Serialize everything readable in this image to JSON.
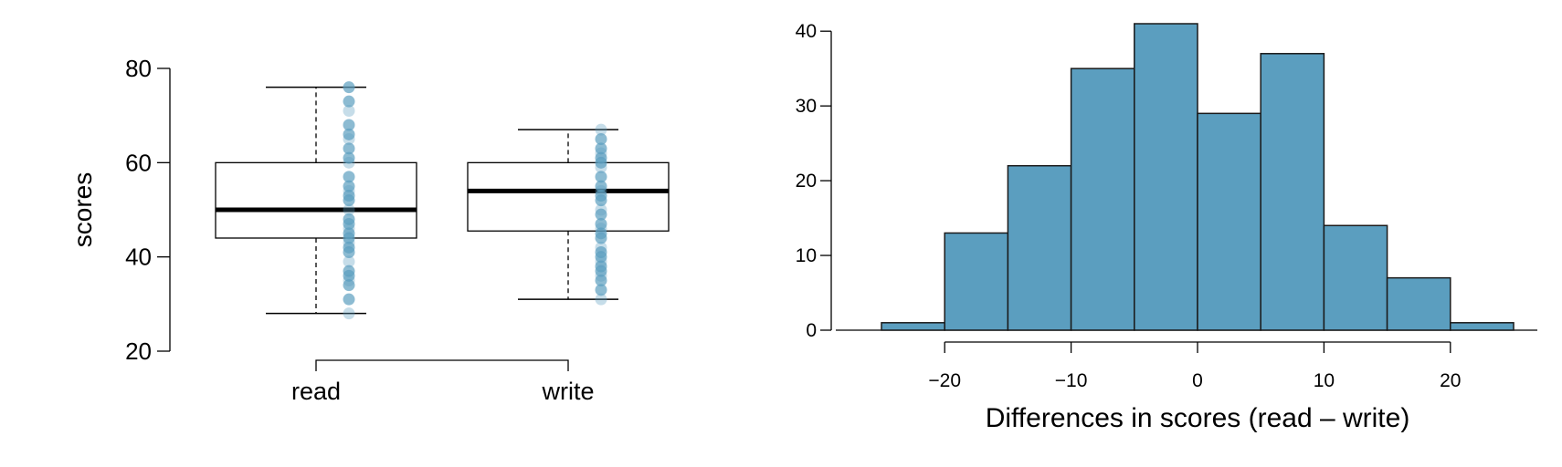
{
  "chart_data": [
    {
      "type": "box",
      "ylabel": "scores",
      "ylim": [
        20,
        80
      ],
      "yticks": [
        20,
        40,
        60,
        80
      ],
      "categories": [
        "read",
        "write"
      ],
      "boxes": [
        {
          "category": "read",
          "min": 28,
          "q1": 44,
          "median": 50,
          "q3": 60,
          "max": 76
        },
        {
          "category": "write",
          "min": 31,
          "q1": 45.5,
          "median": 54,
          "q3": 60,
          "max": 67
        }
      ],
      "points": [
        {
          "category": "read",
          "values": [
            28,
            31,
            34,
            35,
            36,
            37,
            39,
            41,
            42,
            43,
            44,
            45,
            46,
            47,
            48,
            50,
            52,
            53,
            54,
            55,
            57,
            60,
            61,
            63,
            65,
            66,
            68,
            71,
            73,
            76
          ]
        },
        {
          "category": "write",
          "values": [
            31,
            33,
            35,
            36,
            37,
            38,
            39,
            40,
            41,
            42,
            44,
            45,
            46,
            47,
            49,
            50,
            52,
            53,
            54,
            55,
            57,
            59,
            60,
            61,
            62,
            63,
            65,
            67
          ]
        }
      ],
      "colors": {
        "box_stroke": "#000000",
        "points": "#5b9ebf"
      }
    },
    {
      "type": "bar",
      "subtype": "histogram",
      "xlabel": "Differences in scores (read – write)",
      "xticks": [
        -20,
        -10,
        0,
        10,
        20
      ],
      "xtick_labels": [
        "−20",
        "−10",
        "0",
        "10",
        "20"
      ],
      "xlim": [
        -25,
        25
      ],
      "yticks": [
        0,
        10,
        20,
        30,
        40
      ],
      "ylim": [
        0,
        41
      ],
      "bins": [
        {
          "from": -25,
          "to": -20,
          "count": 1
        },
        {
          "from": -20,
          "to": -15,
          "count": 13
        },
        {
          "from": -15,
          "to": -10,
          "count": 22
        },
        {
          "from": -10,
          "to": -5,
          "count": 35
        },
        {
          "from": -5,
          "to": 0,
          "count": 41
        },
        {
          "from": 0,
          "to": 5,
          "count": 29
        },
        {
          "from": 5,
          "to": 10,
          "count": 37
        },
        {
          "from": 10,
          "to": 15,
          "count": 14
        },
        {
          "from": 15,
          "to": 20,
          "count": 7
        },
        {
          "from": 20,
          "to": 25,
          "count": 1
        }
      ],
      "colors": {
        "bar_fill": "#5b9ebf",
        "bar_stroke": "#1a1a1a"
      }
    }
  ]
}
